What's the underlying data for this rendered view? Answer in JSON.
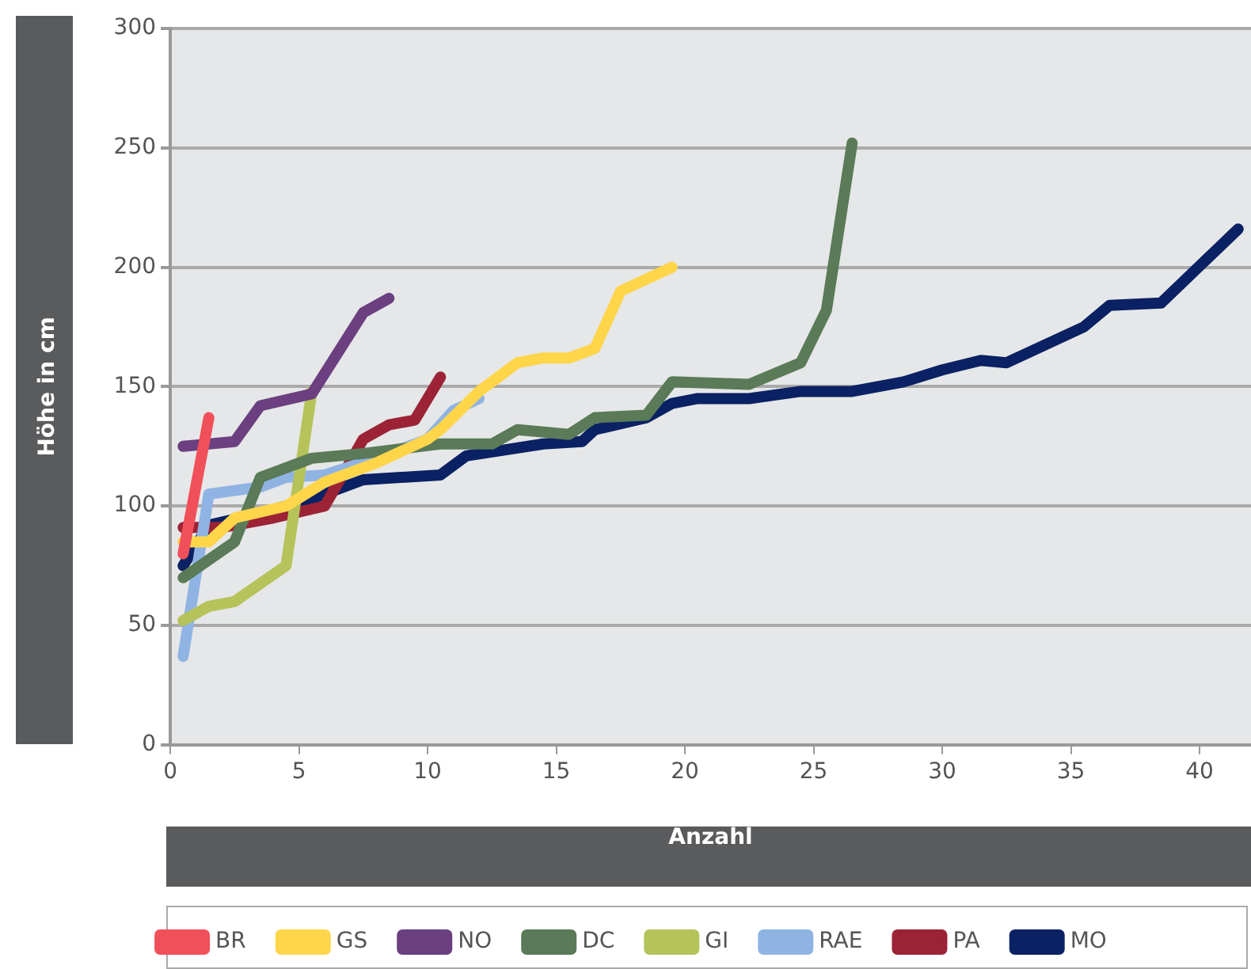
{
  "chart_data": {
    "type": "line",
    "xlabel": "Anzahl",
    "ylabel": "Höhe in cm",
    "xlim": [
      0,
      42
    ],
    "xticks": [
      0,
      5,
      10,
      15,
      20,
      25,
      30,
      35,
      40
    ],
    "ylim": [
      0,
      300
    ],
    "yticks": [
      0,
      50,
      100,
      150,
      200,
      250,
      300
    ],
    "grid": "y",
    "legend": "bottom",
    "series": [
      {
        "name": "BR",
        "color": "#f0505a",
        "x": [
          0.5,
          1.5
        ],
        "values": [
          80,
          137
        ]
      },
      {
        "name": "GS",
        "color": "#ffd54a",
        "x": [
          0.5,
          1.5,
          2.5,
          4.5,
          6,
          8,
          10,
          10.5,
          12,
          13.5,
          14.5,
          15.5,
          16.5,
          17.5,
          19.5
        ],
        "values": [
          85,
          85,
          95,
          100,
          110,
          118,
          128,
          132,
          148,
          160,
          162,
          162,
          166,
          190,
          200
        ]
      },
      {
        "name": "NO",
        "color": "#6b3f80",
        "x": [
          0.5,
          2.5,
          3.5,
          5.5,
          7.5,
          8.5
        ],
        "values": [
          125,
          127,
          142,
          147,
          181,
          187
        ]
      },
      {
        "name": "DC",
        "color": "#5a7a58",
        "x": [
          0.5,
          2.5,
          3.5,
          5.5,
          7.5,
          10.5,
          12.5,
          13.5,
          15.5,
          16.5,
          18.5,
          19.5,
          22.5,
          24.5,
          25.5,
          26.5
        ],
        "values": [
          70,
          85,
          112,
          120,
          122,
          126,
          126,
          132,
          130,
          137,
          138,
          152,
          151,
          160,
          182,
          252
        ]
      },
      {
        "name": "GI",
        "color": "#b5c35a",
        "x": [
          0.5,
          1.5,
          2.5,
          4.5,
          5.5
        ],
        "values": [
          52,
          58,
          60,
          75,
          148
        ]
      },
      {
        "name": "RAE",
        "color": "#8fb4e3",
        "x": [
          0.5,
          1.5,
          3.5,
          4.5,
          6,
          8,
          10,
          11,
          12
        ],
        "values": [
          37,
          105,
          108,
          112,
          113,
          120,
          128,
          140,
          145
        ]
      },
      {
        "name": "PA",
        "color": "#9b2335",
        "x": [
          0.5,
          2,
          4,
          6,
          7.5,
          8.5,
          9.5,
          10.5
        ],
        "values": [
          91,
          91,
          95,
          100,
          128,
          134,
          136,
          154
        ]
      },
      {
        "name": "MO",
        "color": "#0a2163",
        "x": [
          0.5,
          1.5,
          3.5,
          5.5,
          7.5,
          10.5,
          11.5,
          14.5,
          16,
          16.5,
          18.5,
          19.5,
          20.5,
          22.5,
          24.5,
          26.5,
          28.5,
          30,
          31.5,
          32.5,
          35.5,
          36.5,
          38.5,
          41.5
        ],
        "values": [
          75,
          92,
          97,
          103,
          111,
          113,
          121,
          126,
          127,
          132,
          137,
          143,
          145,
          145,
          148,
          148,
          152,
          157,
          161,
          160,
          175,
          184,
          185,
          216
        ]
      }
    ]
  }
}
